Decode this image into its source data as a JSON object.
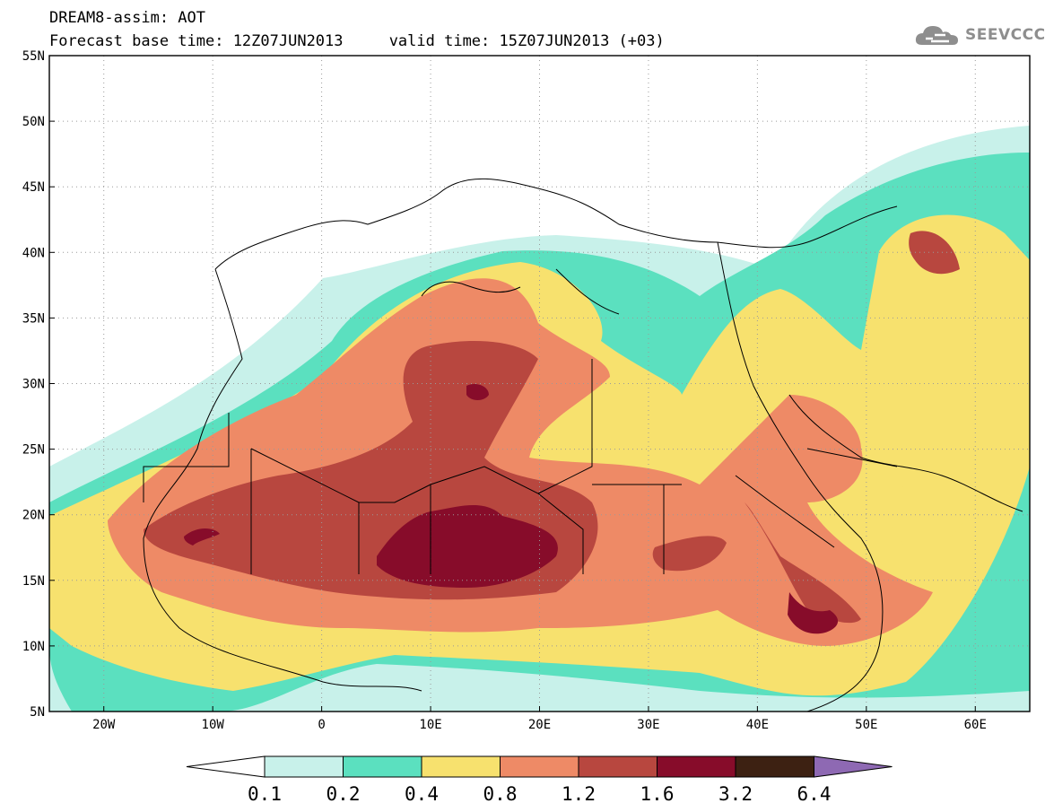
{
  "header": {
    "line1": "DREAM8-assim: AOT",
    "line2": "Forecast base time: 12Z07JUN2013     valid time: 15Z07JUN2013 (+03)"
  },
  "logo": {
    "text": "SEEVCCC",
    "icon": "cloud-icon"
  },
  "map": {
    "lon_range": [
      -25,
      65
    ],
    "lat_range": [
      5,
      55
    ],
    "lat_labels": [
      "55N",
      "50N",
      "45N",
      "40N",
      "35N",
      "30N",
      "25N",
      "20N",
      "15N",
      "10N",
      "5N"
    ],
    "lon_labels": [
      "20W",
      "10W",
      "0",
      "10E",
      "20E",
      "30E",
      "40E",
      "50E",
      "60E"
    ],
    "grid": "dotted"
  },
  "colorbar": {
    "labels": [
      "0.1",
      "0.2",
      "0.4",
      "0.8",
      "1.2",
      "1.6",
      "3.2",
      "6.4"
    ],
    "colors": [
      "#c8f1ea",
      "#5be0bf",
      "#f7e16e",
      "#ee8a66",
      "#b8473f",
      "#870c2a",
      "#3d2112"
    ],
    "under_color": "#ffffff",
    "over_color": "#8e69b3"
  },
  "field_colors": {
    "c1": "#c8f1ea",
    "c2": "#5be0bf",
    "c3": "#f7e16e",
    "c4": "#ee8a66",
    "c5": "#b8473f",
    "c6": "#870c2a"
  }
}
